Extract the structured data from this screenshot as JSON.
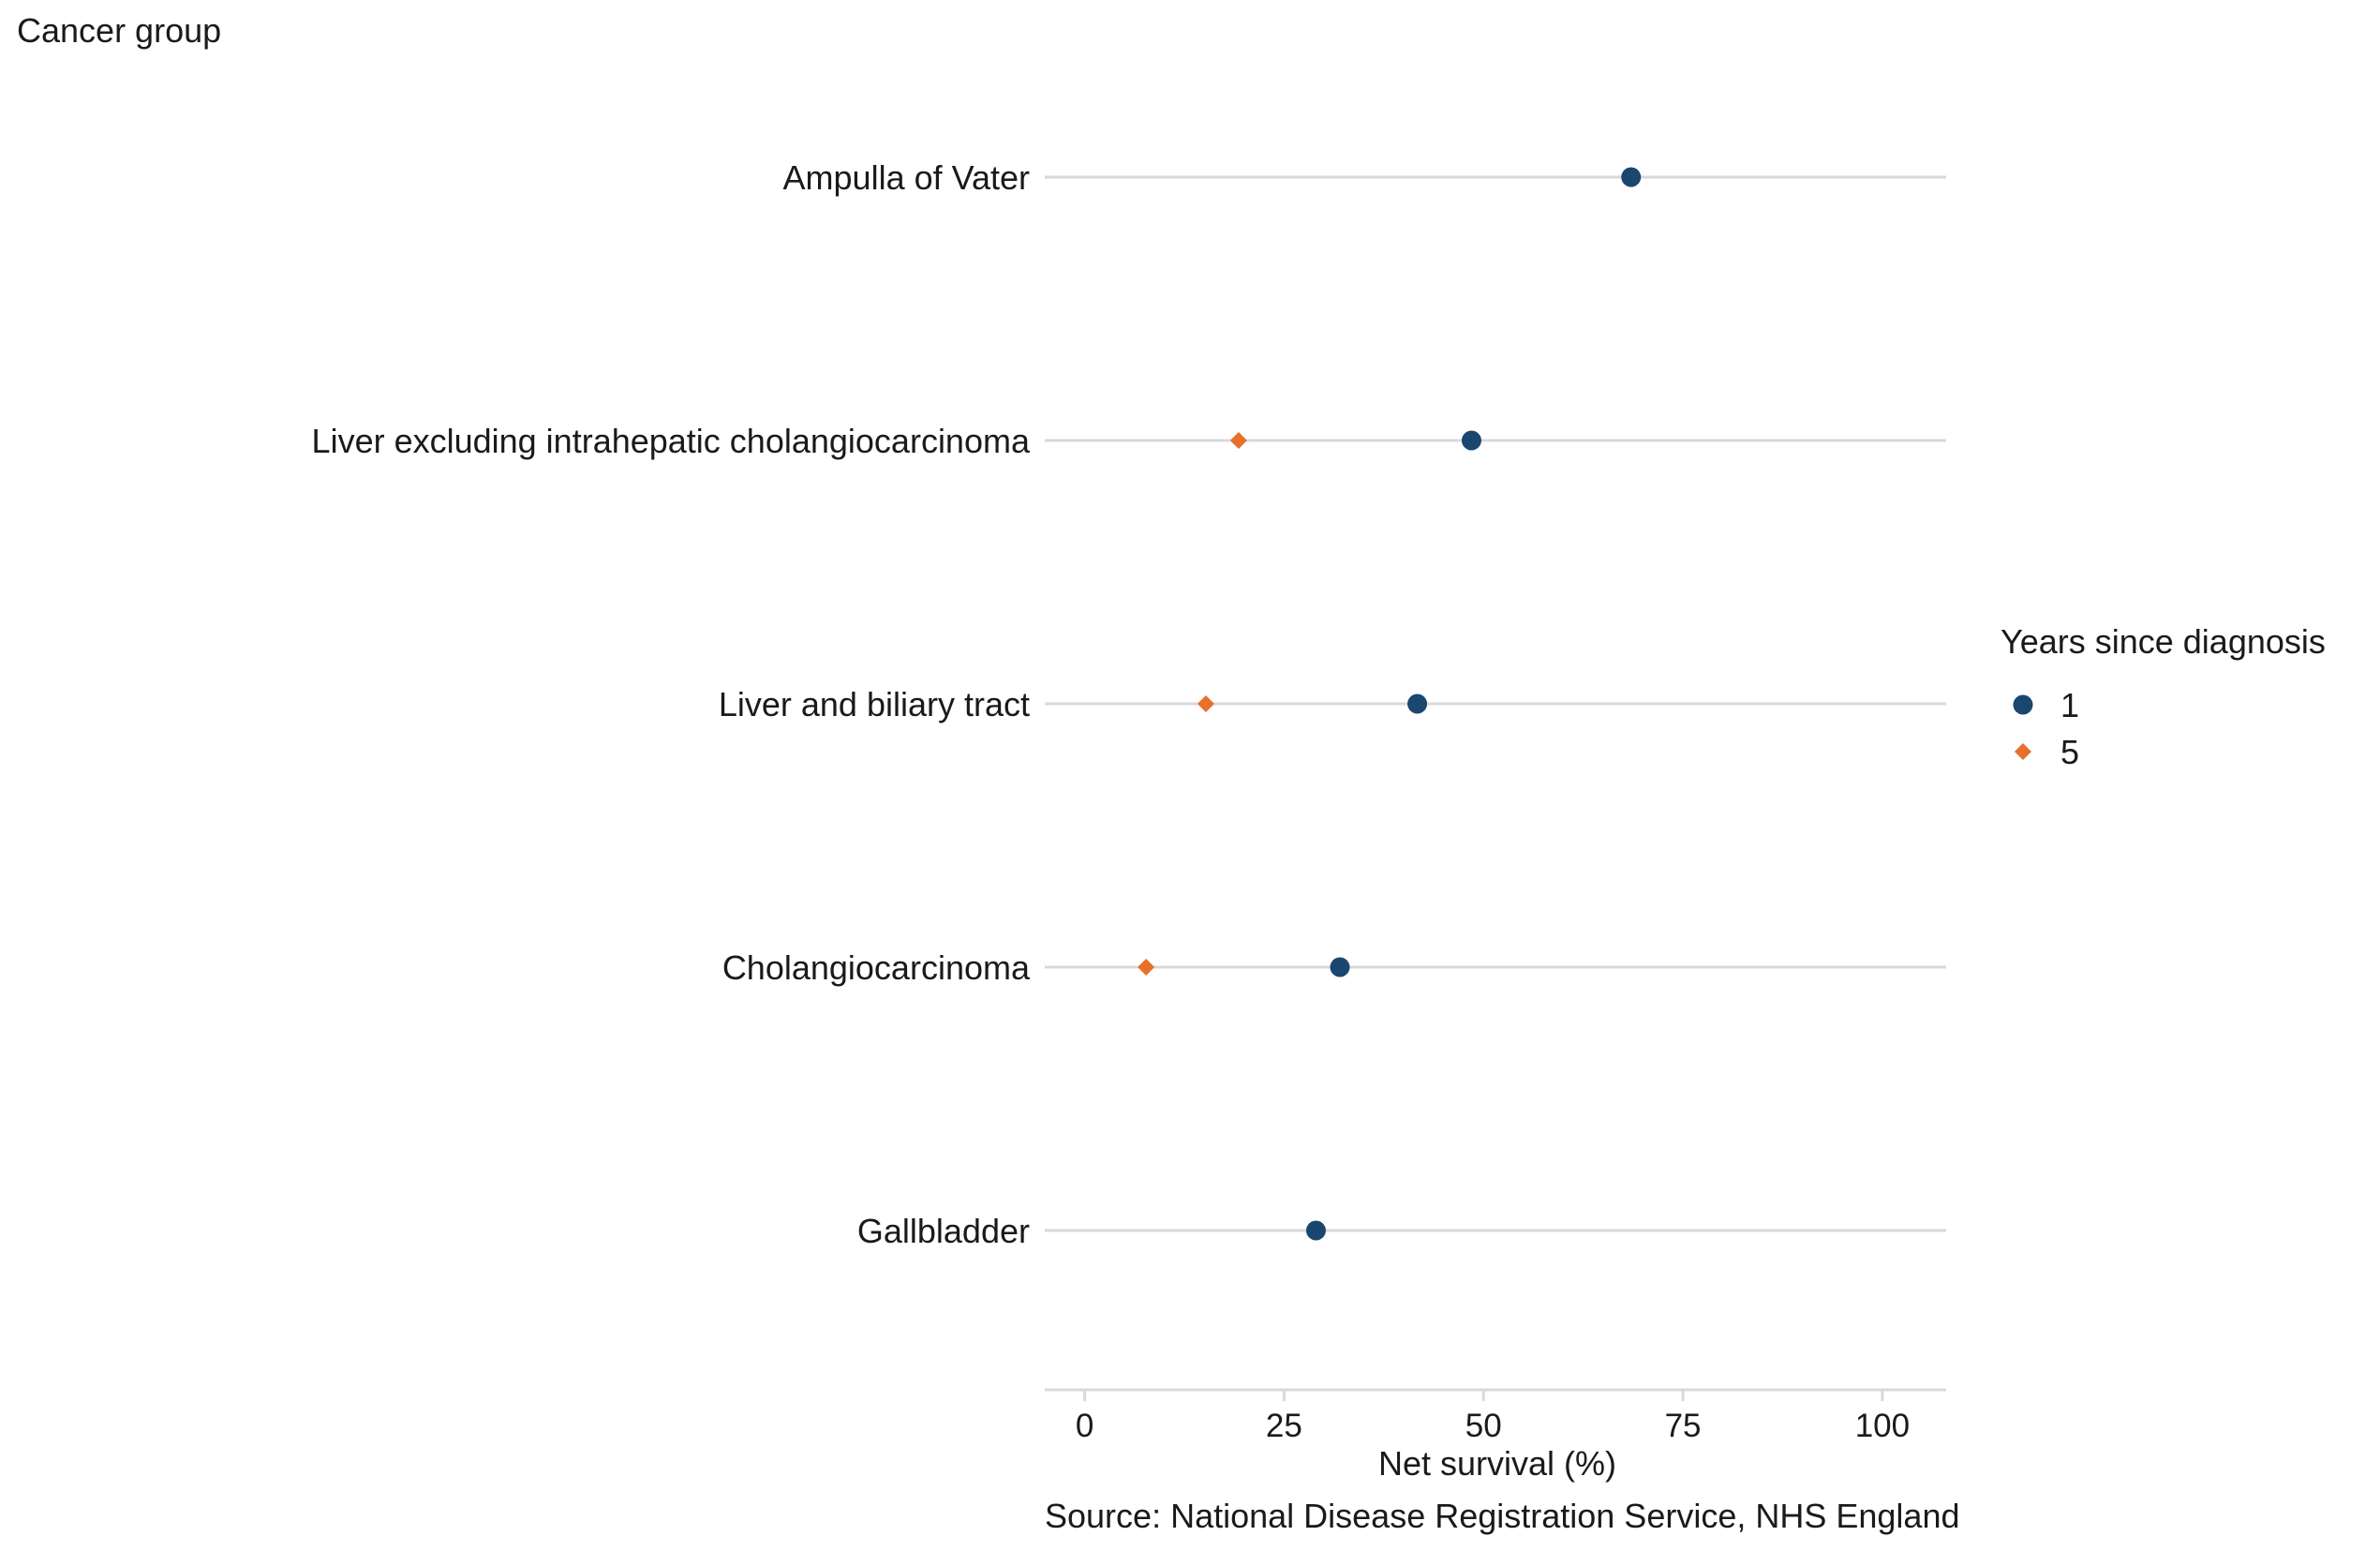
{
  "chart_data": {
    "type": "scatter",
    "subtype": "dot-plot",
    "y_axis_title": "Cancer group",
    "xlabel": "Net survival (%)",
    "caption": "Source: National Disease Registration Service, NHS England",
    "xlim": [
      -5,
      108
    ],
    "x_ticks": [
      0,
      25,
      50,
      75,
      100
    ],
    "x_tick_labels": [
      "0",
      "25",
      "50",
      "75",
      "100"
    ],
    "categories": [
      "Ampulla of Vater",
      "Liver excluding intrahepatic cholangiocarcinoma",
      "Liver and biliary tract",
      "Cholangiocarcinoma",
      "Gallbladder"
    ],
    "series": [
      {
        "name": "1",
        "marker": "circle",
        "color": "#1a4670",
        "values": [
          68.5,
          48.5,
          41.7,
          32.0,
          29.0
        ]
      },
      {
        "name": "5",
        "marker": "diamond",
        "color": "#e8702a",
        "values": [
          null,
          19.3,
          15.2,
          7.7,
          null
        ]
      }
    ],
    "legend": {
      "title": "Years since diagnosis",
      "placement": "right"
    },
    "grid": "horizontal lines per category only",
    "grid_color": "#d9d9d9"
  }
}
